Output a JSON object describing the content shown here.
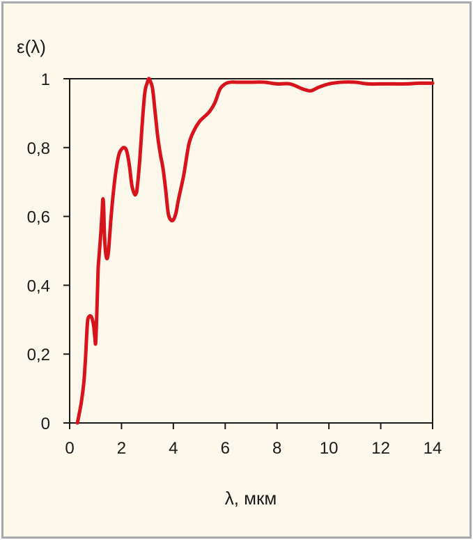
{
  "chart_data": {
    "type": "line",
    "ylabel": "ε(λ)",
    "xlabel": "λ, мкм",
    "xlim": [
      0,
      14
    ],
    "ylim": [
      0,
      1
    ],
    "x_ticks": [
      0,
      2,
      4,
      6,
      8,
      10,
      12,
      14
    ],
    "x_tick_labels": [
      "0",
      "2",
      "4",
      "6",
      "8",
      "10",
      "12",
      "14"
    ],
    "y_ticks": [
      0,
      0.2,
      0.4,
      0.6,
      0.8,
      1
    ],
    "y_tick_labels": [
      "0",
      "0,2",
      "0,4",
      "0,6",
      "0,8",
      "1"
    ],
    "grid": false,
    "colors": {
      "line": "#d7141b",
      "axes": "#1a1a1a",
      "background": "#fdf8ec",
      "frame": "#a7a9ac"
    },
    "series": [
      {
        "x": [
          0.3,
          0.45,
          0.55,
          0.62,
          0.66,
          0.7,
          0.76,
          0.82,
          0.88,
          0.93,
          0.97,
          1.0,
          1.03,
          1.06,
          1.08,
          1.1,
          1.15,
          1.2,
          1.25,
          1.28,
          1.31,
          1.34,
          1.38,
          1.42,
          1.46,
          1.5,
          1.55,
          1.6,
          1.7,
          1.8,
          1.9,
          2.0,
          2.1,
          2.2,
          2.3,
          2.4,
          2.5,
          2.55,
          2.6,
          2.7,
          2.8,
          2.9,
          3.0,
          3.05,
          3.1,
          3.2,
          3.3,
          3.4,
          3.5,
          3.6,
          3.7,
          3.8,
          3.9,
          4.0,
          4.1,
          4.2,
          4.4,
          4.6,
          4.8,
          5.0,
          5.2,
          5.4,
          5.6,
          5.8,
          6.0,
          6.2,
          6.5,
          7.0,
          7.5,
          8.0,
          8.5,
          9.0,
          9.3,
          9.6,
          10.0,
          10.5,
          11.0,
          11.5,
          12.0,
          12.5,
          13.0,
          13.5,
          14.0
        ],
        "y": [
          0.0,
          0.06,
          0.12,
          0.2,
          0.26,
          0.3,
          0.31,
          0.31,
          0.3,
          0.28,
          0.25,
          0.23,
          0.28,
          0.35,
          0.4,
          0.45,
          0.5,
          0.55,
          0.61,
          0.65,
          0.63,
          0.55,
          0.5,
          0.48,
          0.48,
          0.5,
          0.55,
          0.6,
          0.68,
          0.74,
          0.78,
          0.795,
          0.8,
          0.79,
          0.75,
          0.69,
          0.665,
          0.665,
          0.68,
          0.76,
          0.87,
          0.96,
          0.99,
          1.0,
          0.995,
          0.97,
          0.9,
          0.83,
          0.78,
          0.74,
          0.68,
          0.61,
          0.59,
          0.59,
          0.61,
          0.65,
          0.72,
          0.81,
          0.85,
          0.875,
          0.89,
          0.905,
          0.93,
          0.97,
          0.985,
          0.99,
          0.99,
          0.99,
          0.99,
          0.985,
          0.985,
          0.97,
          0.965,
          0.975,
          0.985,
          0.99,
          0.99,
          0.985,
          0.985,
          0.985,
          0.985,
          0.987,
          0.987
        ]
      }
    ]
  }
}
